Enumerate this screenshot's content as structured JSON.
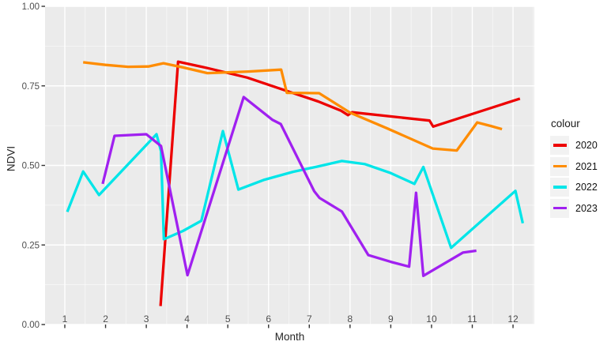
{
  "chart_data": {
    "type": "line",
    "title": "",
    "xlabel": "Month",
    "ylabel": "NDVI",
    "legend_title": "colour",
    "legend_position": "right",
    "xlim": [
      0.52,
      12.53
    ],
    "ylim": [
      0.0,
      1.0
    ],
    "x_ticks": [
      1,
      2,
      3,
      4,
      5,
      6,
      7,
      8,
      9,
      10,
      11,
      12
    ],
    "y_ticks": [
      {
        "v": 0.0,
        "label": "0.00"
      },
      {
        "v": 0.25,
        "label": "0.25"
      },
      {
        "v": 0.5,
        "label": "0.50"
      },
      {
        "v": 0.75,
        "label": "0.75"
      },
      {
        "v": 1.0,
        "label": "1.00"
      }
    ],
    "grid": "white major + minor gridlines on gray panel",
    "panel_bg": "#EBEBEB",
    "grid_major_color": "#FFFFFF",
    "grid_minor_color": "#FFFFFF",
    "tick_mark_color": "#333333",
    "axis_text_color": "#4D4D4D",
    "series": [
      {
        "name": "2020",
        "color": "#ED0000",
        "points": [
          [
            3.35,
            0.058
          ],
          [
            3.78,
            0.826
          ],
          [
            4.5,
            0.806
          ],
          [
            5.48,
            0.776
          ],
          [
            6.52,
            0.731
          ],
          [
            7.22,
            0.701
          ],
          [
            7.78,
            0.672
          ],
          [
            7.95,
            0.658
          ],
          [
            8.05,
            0.667
          ],
          [
            9.95,
            0.641
          ],
          [
            10.04,
            0.622
          ],
          [
            12.17,
            0.71
          ]
        ]
      },
      {
        "name": "2021",
        "color": "#FF8C00",
        "points": [
          [
            1.45,
            0.824
          ],
          [
            2.0,
            0.816
          ],
          [
            2.55,
            0.81
          ],
          [
            3.05,
            0.811
          ],
          [
            3.42,
            0.821
          ],
          [
            3.9,
            0.808
          ],
          [
            4.5,
            0.79
          ],
          [
            5.5,
            0.795
          ],
          [
            6.31,
            0.801
          ],
          [
            6.45,
            0.728
          ],
          [
            7.24,
            0.727
          ],
          [
            8.0,
            0.666
          ],
          [
            8.9,
            0.617
          ],
          [
            10.03,
            0.553
          ],
          [
            10.62,
            0.547
          ],
          [
            11.12,
            0.635
          ],
          [
            11.45,
            0.624
          ],
          [
            11.73,
            0.614
          ]
        ]
      },
      {
        "name": "2022",
        "color": "#00E5E8",
        "points": [
          [
            1.06,
            0.354
          ],
          [
            1.45,
            0.481
          ],
          [
            1.84,
            0.407
          ],
          [
            3.25,
            0.598
          ],
          [
            3.36,
            0.545
          ],
          [
            3.43,
            0.268
          ],
          [
            3.9,
            0.294
          ],
          [
            4.35,
            0.326
          ],
          [
            4.88,
            0.608
          ],
          [
            5.26,
            0.424
          ],
          [
            5.9,
            0.455
          ],
          [
            6.6,
            0.48
          ],
          [
            7.22,
            0.497
          ],
          [
            7.8,
            0.514
          ],
          [
            8.37,
            0.504
          ],
          [
            9.0,
            0.476
          ],
          [
            9.58,
            0.442
          ],
          [
            9.8,
            0.495
          ],
          [
            10.48,
            0.241
          ],
          [
            12.06,
            0.42
          ],
          [
            12.24,
            0.318
          ]
        ]
      },
      {
        "name": "2023",
        "color": "#A020F0",
        "points": [
          [
            1.93,
            0.442
          ],
          [
            2.22,
            0.593
          ],
          [
            3.0,
            0.598
          ],
          [
            3.36,
            0.561
          ],
          [
            4.01,
            0.155
          ],
          [
            5.39,
            0.715
          ],
          [
            6.1,
            0.643
          ],
          [
            6.3,
            0.63
          ],
          [
            7.12,
            0.419
          ],
          [
            7.25,
            0.398
          ],
          [
            7.8,
            0.355
          ],
          [
            8.45,
            0.218
          ],
          [
            9.0,
            0.197
          ],
          [
            9.45,
            0.182
          ],
          [
            9.62,
            0.414
          ],
          [
            9.8,
            0.153
          ],
          [
            10.77,
            0.226
          ],
          [
            11.1,
            0.232
          ]
        ]
      }
    ]
  }
}
